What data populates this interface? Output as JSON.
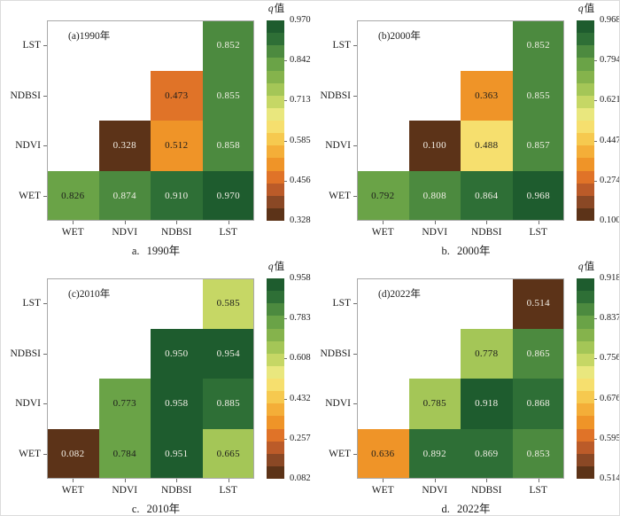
{
  "palette": {
    "comment": "16 discrete colormap steps, index 0 = lowest q value (dark brown) to index 15 = highest q value (dark green)",
    "colors": [
      "#5c3318",
      "#8a4825",
      "#bb5b29",
      "#e07328",
      "#ef9428",
      "#f4ae38",
      "#f6c94f",
      "#f6df6e",
      "#e9e77e",
      "#c6d765",
      "#a4c657",
      "#85b34c",
      "#6aa347",
      "#4c8a3f",
      "#2e6f36",
      "#1e5c2e"
    ],
    "light_text": "#f4f1e8",
    "dark_text": "#1c1c1c",
    "frame_color": "#a9a9a9"
  },
  "labels": {
    "colorbar_title_italic": "q",
    "colorbar_title_cjk": "值"
  },
  "chart_data": {
    "type": "heatmap",
    "layout": "2x2 lower-triangle interaction matrices with per-panel discrete colorbars",
    "x_categories": [
      "WET",
      "NDVI",
      "NDBSI",
      "LST"
    ],
    "y_categories_top_down": [
      "LST",
      "NDBSI",
      "NDVI",
      "WET"
    ],
    "colorbar_title": "q值",
    "value_format_decimals": 3,
    "panels": [
      {
        "id": "a",
        "title": "(a)1990年",
        "caption": "a. 1990年",
        "min": 0.328,
        "max": 0.97,
        "colorbar_ticks": [
          0.97,
          0.842,
          0.713,
          0.585,
          0.456,
          0.328
        ],
        "rows_top_down": [
          [
            null,
            null,
            null,
            0.852
          ],
          [
            null,
            null,
            0.473,
            0.855
          ],
          [
            null,
            0.328,
            0.512,
            0.858
          ],
          [
            0.826,
            0.874,
            0.91,
            0.97
          ]
        ]
      },
      {
        "id": "b",
        "title": "(b)2000年",
        "caption": "b. 2000年",
        "min": 0.1,
        "max": 0.968,
        "colorbar_ticks": [
          0.968,
          0.794,
          0.621,
          0.447,
          0.274,
          0.1
        ],
        "rows_top_down": [
          [
            null,
            null,
            null,
            0.852
          ],
          [
            null,
            null,
            0.363,
            0.855
          ],
          [
            null,
            0.1,
            0.488,
            0.857
          ],
          [
            0.792,
            0.808,
            0.864,
            0.968
          ]
        ]
      },
      {
        "id": "c",
        "title": "(c)2010年",
        "caption": "c. 2010年",
        "min": 0.082,
        "max": 0.958,
        "colorbar_ticks": [
          0.958,
          0.783,
          0.608,
          0.432,
          0.257,
          0.082
        ],
        "rows_top_down": [
          [
            null,
            null,
            null,
            0.585
          ],
          [
            null,
            null,
            0.95,
            0.954
          ],
          [
            null,
            0.773,
            0.958,
            0.885
          ],
          [
            0.082,
            0.784,
            0.951,
            0.665
          ]
        ]
      },
      {
        "id": "d",
        "title": "(d)2022年",
        "caption": "d. 2022年",
        "min": 0.514,
        "max": 0.918,
        "colorbar_ticks": [
          0.918,
          0.837,
          0.756,
          0.676,
          0.595,
          0.514
        ],
        "rows_top_down": [
          [
            null,
            null,
            null,
            0.514
          ],
          [
            null,
            null,
            0.778,
            0.865
          ],
          [
            null,
            0.785,
            0.918,
            0.868
          ],
          [
            0.636,
            0.892,
            0.869,
            0.853
          ]
        ]
      }
    ]
  }
}
